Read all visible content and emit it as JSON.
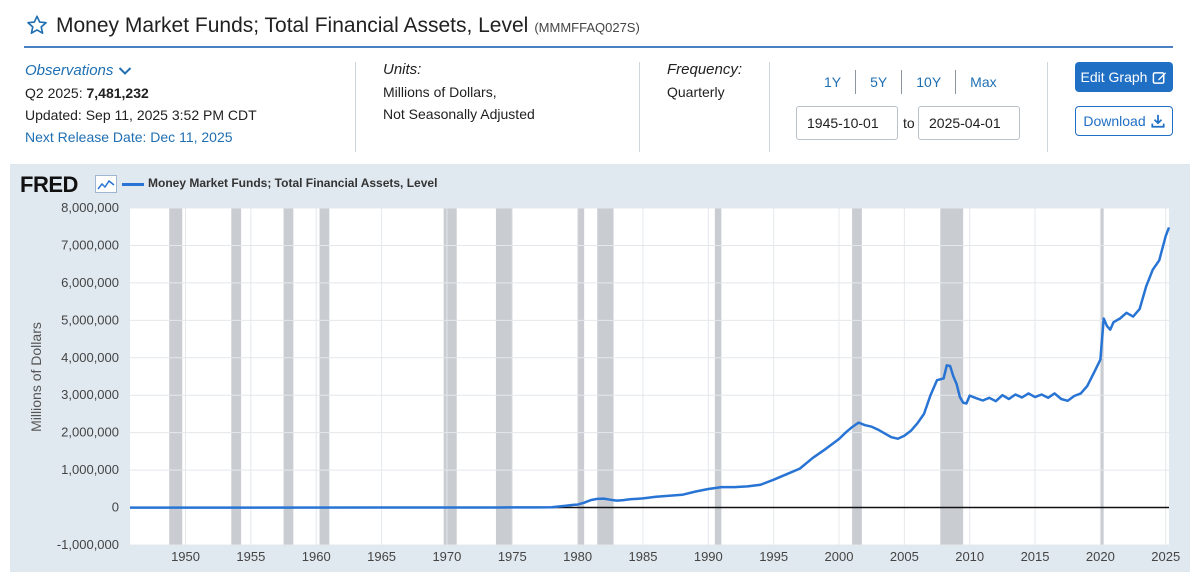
{
  "header": {
    "title": "Money Market Funds; Total Financial Assets, Level",
    "series_id": "(MMMFFAQ027S)"
  },
  "observations": {
    "link_label": "Observations",
    "period_label": "Q2 2025:",
    "value": "7,481,232",
    "updated": "Updated: Sep 11, 2025 3:52 PM CDT",
    "next_release": "Next Release Date: Dec 11, 2025"
  },
  "units": {
    "label": "Units:",
    "line1": "Millions of Dollars,",
    "line2": "Not Seasonally Adjusted"
  },
  "frequency": {
    "label": "Frequency:",
    "value": "Quarterly"
  },
  "range": {
    "links": [
      "1Y",
      "5Y",
      "10Y",
      "Max"
    ],
    "start": "1945-10-01",
    "to_label": "to",
    "end": "2025-04-01"
  },
  "buttons": {
    "edit_graph": "Edit Graph",
    "download": "Download"
  },
  "branding": {
    "logo": "FRED"
  },
  "colors": {
    "line": "#2874d4",
    "accent": "#1f6fc5",
    "recession": "#c9cdd2",
    "panel": "#e1e9f0"
  },
  "chart_data": {
    "type": "line",
    "title": "",
    "xlabel": "",
    "ylabel": "Millions of Dollars",
    "xlim": [
      1945.75,
      2025.25
    ],
    "ylim": [
      -1000000,
      8000000
    ],
    "yticks": [
      -1000000,
      0,
      1000000,
      2000000,
      3000000,
      4000000,
      5000000,
      6000000,
      7000000,
      8000000
    ],
    "ytick_labels": [
      "-1,000,000",
      "0",
      "1,000,000",
      "2,000,000",
      "3,000,000",
      "4,000,000",
      "5,000,000",
      "6,000,000",
      "7,000,000",
      "8,000,000"
    ],
    "xticks": [
      1950,
      1955,
      1960,
      1965,
      1970,
      1975,
      1980,
      1985,
      1990,
      1995,
      2000,
      2005,
      2010,
      2015,
      2020,
      2025
    ],
    "grid": true,
    "legend_position": "top-left",
    "series": [
      {
        "name": "Money Market Funds; Total Financial Assets, Level",
        "x": [
          1945.75,
          1974.0,
          1975.0,
          1976.0,
          1977.0,
          1978.0,
          1979.0,
          1979.75,
          1980.0,
          1980.5,
          1981.0,
          1981.5,
          1982.0,
          1982.5,
          1983.0,
          1983.5,
          1984.0,
          1985.0,
          1986.0,
          1987.0,
          1988.0,
          1989.0,
          1990.0,
          1991.0,
          1992.0,
          1993.0,
          1994.0,
          1995.0,
          1996.0,
          1997.0,
          1998.0,
          1999.0,
          2000.0,
          2000.5,
          2001.0,
          2001.5,
          2002.0,
          2002.5,
          2003.0,
          2003.5,
          2004.0,
          2004.5,
          2005.0,
          2005.5,
          2006.0,
          2006.5,
          2007.0,
          2007.5,
          2008.0,
          2008.25,
          2008.5,
          2008.75,
          2009.0,
          2009.25,
          2009.5,
          2009.75,
          2010.0,
          2010.5,
          2011.0,
          2011.5,
          2012.0,
          2012.5,
          2013.0,
          2013.5,
          2014.0,
          2014.5,
          2015.0,
          2015.5,
          2016.0,
          2016.5,
          2017.0,
          2017.5,
          2018.0,
          2018.5,
          2019.0,
          2019.5,
          2020.0,
          2020.25,
          2020.5,
          2020.75,
          2021.0,
          2021.5,
          2022.0,
          2022.5,
          2023.0,
          2023.5,
          2024.0,
          2024.5,
          2025.0,
          2025.25
        ],
        "y": [
          0,
          2000,
          4000,
          4000,
          4000,
          10000,
          45000,
          75000,
          80000,
          130000,
          200000,
          230000,
          240000,
          210000,
          185000,
          200000,
          220000,
          245000,
          290000,
          315000,
          340000,
          425000,
          495000,
          545000,
          545000,
          565000,
          610000,
          745000,
          890000,
          1040000,
          1330000,
          1570000,
          1830000,
          2000000,
          2150000,
          2270000,
          2200000,
          2160000,
          2080000,
          1980000,
          1880000,
          1840000,
          1920000,
          2050000,
          2250000,
          2500000,
          3000000,
          3400000,
          3450000,
          3800000,
          3780000,
          3500000,
          3300000,
          2950000,
          2800000,
          2780000,
          2990000,
          2920000,
          2860000,
          2930000,
          2840000,
          3000000,
          2900000,
          3020000,
          2940000,
          3050000,
          2950000,
          3020000,
          2930000,
          3050000,
          2900000,
          2850000,
          2980000,
          3050000,
          3250000,
          3600000,
          3950000,
          5050000,
          4850000,
          4750000,
          4950000,
          5050000,
          5200000,
          5100000,
          5300000,
          5900000,
          6350000,
          6600000,
          7250000,
          7481232
        ]
      }
    ],
    "recessions": [
      [
        1948.75,
        1949.75
      ],
      [
        1953.5,
        1954.25
      ],
      [
        1957.5,
        1958.25
      ],
      [
        1960.25,
        1961.0
      ],
      [
        1969.75,
        1970.75
      ],
      [
        1973.75,
        1975.0
      ],
      [
        1980.0,
        1980.5
      ],
      [
        1981.5,
        1982.75
      ],
      [
        1990.5,
        1991.0
      ],
      [
        2001.0,
        2001.75
      ],
      [
        2007.75,
        2009.5
      ],
      [
        2020.0,
        2020.25
      ]
    ]
  }
}
